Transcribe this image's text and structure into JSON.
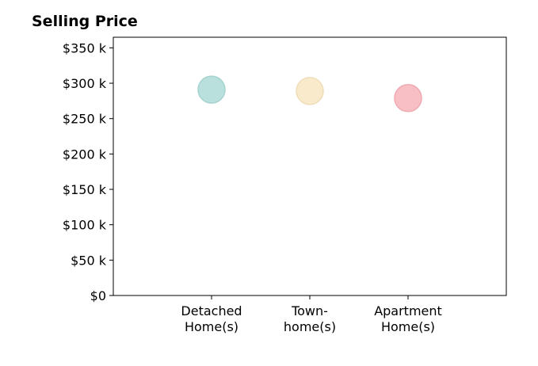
{
  "chart_data": {
    "type": "scatter",
    "title": "Selling Price",
    "categories": [
      "Detached Home(s)",
      "Town-home(s)",
      "Apartment Home(s)"
    ],
    "category_lines": [
      [
        "Detached",
        "Home(s)"
      ],
      [
        "Town-",
        "home(s)"
      ],
      [
        "Apartment",
        "Home(s)"
      ]
    ],
    "values": [
      291,
      289,
      279
    ],
    "value_unit": "thousand USD",
    "colors": [
      "#B9E0DC",
      "#F9EACB",
      "#F8BFC4"
    ],
    "stroke_colors": [
      "#A6D3CE",
      "#EEDDB8",
      "#EEAAB1"
    ],
    "ylim": [
      0,
      365
    ],
    "yticks": [
      0,
      50,
      100,
      150,
      200,
      250,
      300,
      350
    ],
    "ytick_labels": [
      "$0",
      "$50 k",
      "$100 k",
      "$150 k",
      "$200 k",
      "$250 k",
      "$300 k",
      "$350 k"
    ],
    "xlabel": "",
    "ylabel": "",
    "grid": false,
    "legend": "none"
  }
}
